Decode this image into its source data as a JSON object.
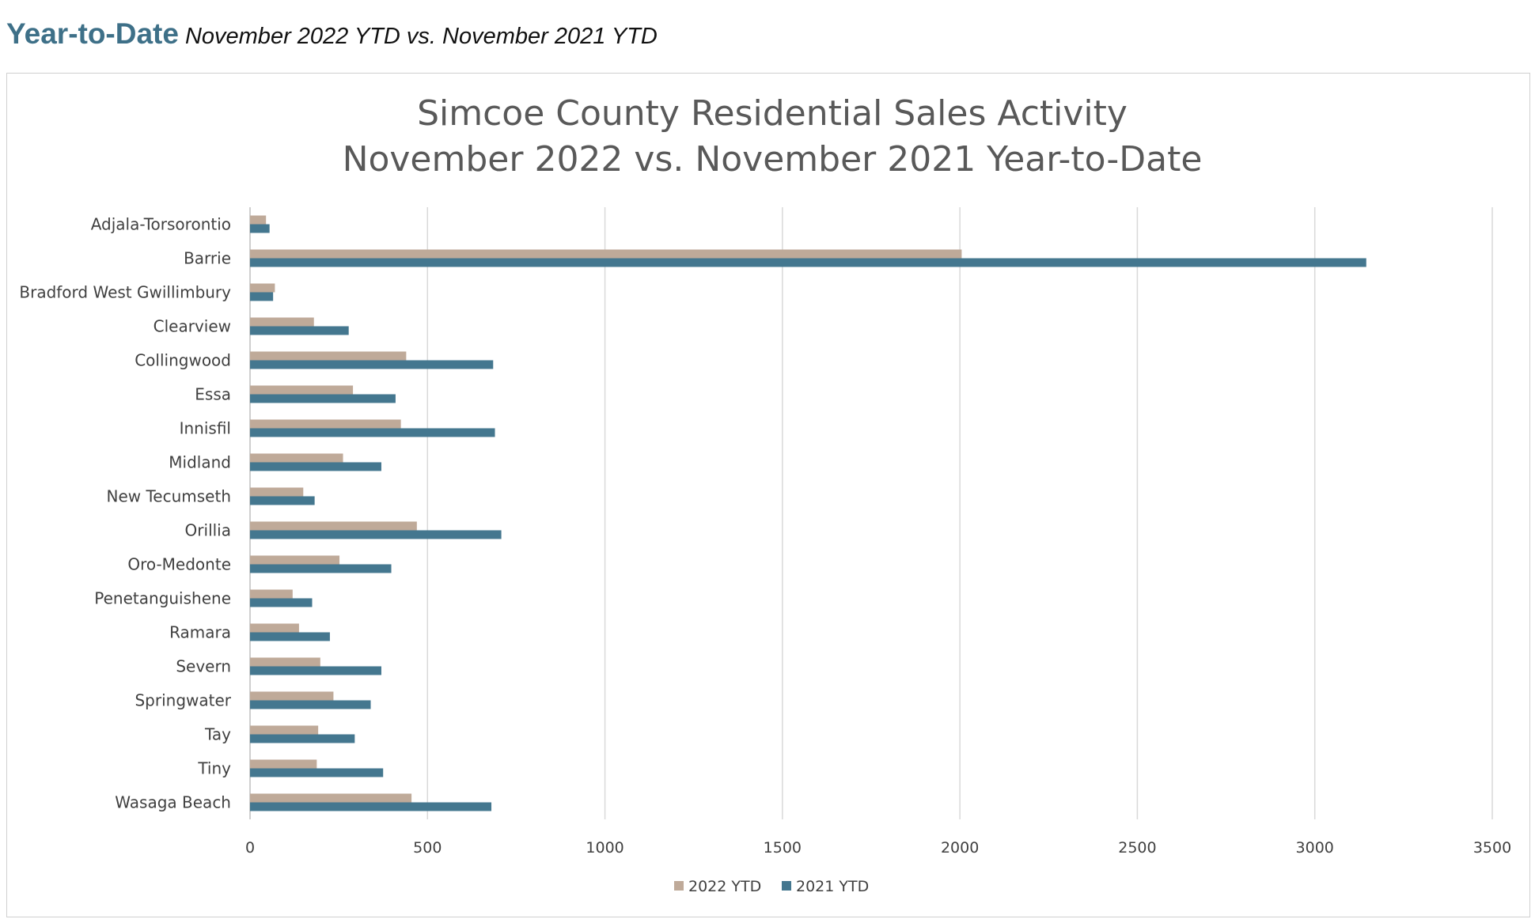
{
  "header": {
    "title": "Year-to-Date",
    "subtitle": "November 2022 YTD vs. November 2021 YTD"
  },
  "chart_data": {
    "type": "bar",
    "orientation": "horizontal",
    "title": [
      "Simcoe County Residential Sales Activity",
      "November 2022 vs. November 2021 Year-to-Date"
    ],
    "xlabel": "",
    "ylabel": "",
    "xlim": [
      0,
      3500
    ],
    "xticks": [
      0,
      500,
      1000,
      1500,
      2000,
      2500,
      3000,
      3500
    ],
    "grid": "vertical",
    "legend_position": "bottom",
    "categories": [
      "Adjala-Torsorontio",
      "Barrie",
      "Bradford West Gwillimbury",
      "Clearview",
      "Collingwood",
      "Essa",
      "Innisfil",
      "Midland",
      "New Tecumseth",
      "Orillia",
      "Oro-Medonte",
      "Penetanguishene",
      "Ramara",
      "Severn",
      "Springwater",
      "Tay",
      "Tiny",
      "Wasaga Beach"
    ],
    "series": [
      {
        "name": "2022 YTD",
        "color": "#bfaa99",
        "values": [
          45,
          2005,
          70,
          180,
          440,
          290,
          425,
          262,
          150,
          470,
          252,
          120,
          138,
          198,
          235,
          192,
          188,
          455
        ]
      },
      {
        "name": "2021 YTD",
        "color": "#44778f",
        "values": [
          55,
          3145,
          65,
          278,
          685,
          410,
          690,
          370,
          182,
          708,
          398,
          175,
          225,
          370,
          340,
          295,
          375,
          680
        ]
      }
    ]
  }
}
